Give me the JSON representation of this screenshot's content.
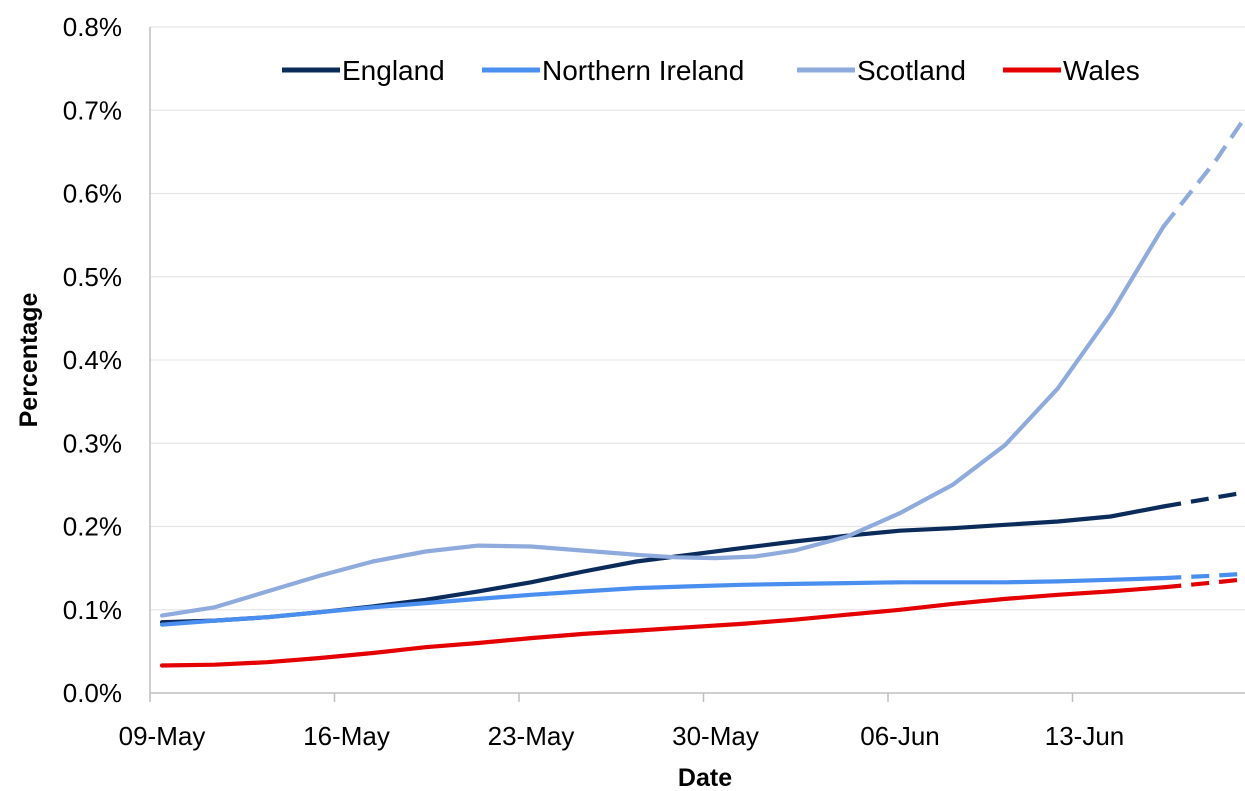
{
  "chart_data": {
    "type": "line",
    "xlabel": "Date",
    "ylabel": "Percentage",
    "x_tick_labels": [
      "09-May",
      "16-May",
      "23-May",
      "30-May",
      "06-Jun",
      "13-Jun"
    ],
    "y_tick_labels": [
      "0.0%",
      "0.1%",
      "0.2%",
      "0.3%",
      "0.4%",
      "0.5%",
      "0.6%",
      "0.7%",
      "0.8%"
    ],
    "ylim": [
      0,
      0.8
    ],
    "x_range_days": [
      0,
      41.5
    ],
    "x_start_label": "09-May",
    "x_unit": "days",
    "grid": "horizontal",
    "legend_position": "top",
    "dashed_from_day": 38,
    "series": [
      {
        "name": "England",
        "color": "#0b2c5a",
        "points": [
          [
            0,
            0.085
          ],
          [
            2,
            0.087
          ],
          [
            4,
            0.091
          ],
          [
            6,
            0.097
          ],
          [
            8,
            0.104
          ],
          [
            10,
            0.112
          ],
          [
            12,
            0.122
          ],
          [
            14,
            0.133
          ],
          [
            16,
            0.146
          ],
          [
            18,
            0.158
          ],
          [
            20,
            0.166
          ],
          [
            22,
            0.174
          ],
          [
            24,
            0.182
          ],
          [
            26,
            0.189
          ],
          [
            28,
            0.195
          ],
          [
            30,
            0.198
          ],
          [
            32,
            0.202
          ],
          [
            34,
            0.206
          ],
          [
            36,
            0.212
          ],
          [
            38,
            0.224
          ],
          [
            40,
            0.235
          ],
          [
            41.5,
            0.243
          ]
        ]
      },
      {
        "name": "Northern Ireland",
        "color": "#4a8ff0",
        "points": [
          [
            0,
            0.082
          ],
          [
            2,
            0.087
          ],
          [
            4,
            0.091
          ],
          [
            6,
            0.097
          ],
          [
            8,
            0.103
          ],
          [
            10,
            0.108
          ],
          [
            12,
            0.113
          ],
          [
            14,
            0.118
          ],
          [
            16,
            0.122
          ],
          [
            18,
            0.126
          ],
          [
            20,
            0.128
          ],
          [
            22,
            0.13
          ],
          [
            24,
            0.131
          ],
          [
            26,
            0.132
          ],
          [
            28,
            0.133
          ],
          [
            30,
            0.133
          ],
          [
            32,
            0.133
          ],
          [
            34,
            0.134
          ],
          [
            36,
            0.136
          ],
          [
            38,
            0.138
          ],
          [
            40,
            0.141
          ],
          [
            41.5,
            0.144
          ]
        ]
      },
      {
        "name": "Scotland",
        "color": "#8faadc",
        "points": [
          [
            0,
            0.093
          ],
          [
            2,
            0.103
          ],
          [
            4,
            0.122
          ],
          [
            6,
            0.141
          ],
          [
            8,
            0.158
          ],
          [
            10,
            0.17
          ],
          [
            12,
            0.177
          ],
          [
            14,
            0.176
          ],
          [
            16,
            0.171
          ],
          [
            18,
            0.166
          ],
          [
            19.5,
            0.163
          ],
          [
            21,
            0.162
          ],
          [
            22.5,
            0.164
          ],
          [
            24,
            0.171
          ],
          [
            26,
            0.188
          ],
          [
            28,
            0.216
          ],
          [
            30,
            0.25
          ],
          [
            32,
            0.298
          ],
          [
            34,
            0.366
          ],
          [
            36,
            0.455
          ],
          [
            38,
            0.56
          ],
          [
            40,
            0.64
          ],
          [
            41.5,
            0.71
          ]
        ]
      },
      {
        "name": "Wales",
        "color": "#e50000",
        "points": [
          [
            0,
            0.033
          ],
          [
            2,
            0.034
          ],
          [
            4,
            0.037
          ],
          [
            6,
            0.042
          ],
          [
            8,
            0.048
          ],
          [
            10,
            0.055
          ],
          [
            12,
            0.06
          ],
          [
            14,
            0.066
          ],
          [
            16,
            0.071
          ],
          [
            18,
            0.075
          ],
          [
            20,
            0.079
          ],
          [
            22,
            0.083
          ],
          [
            24,
            0.088
          ],
          [
            26,
            0.094
          ],
          [
            28,
            0.1
          ],
          [
            30,
            0.107
          ],
          [
            32,
            0.113
          ],
          [
            34,
            0.118
          ],
          [
            36,
            0.122
          ],
          [
            38,
            0.127
          ],
          [
            40,
            0.133
          ],
          [
            41.5,
            0.138
          ]
        ]
      }
    ]
  }
}
